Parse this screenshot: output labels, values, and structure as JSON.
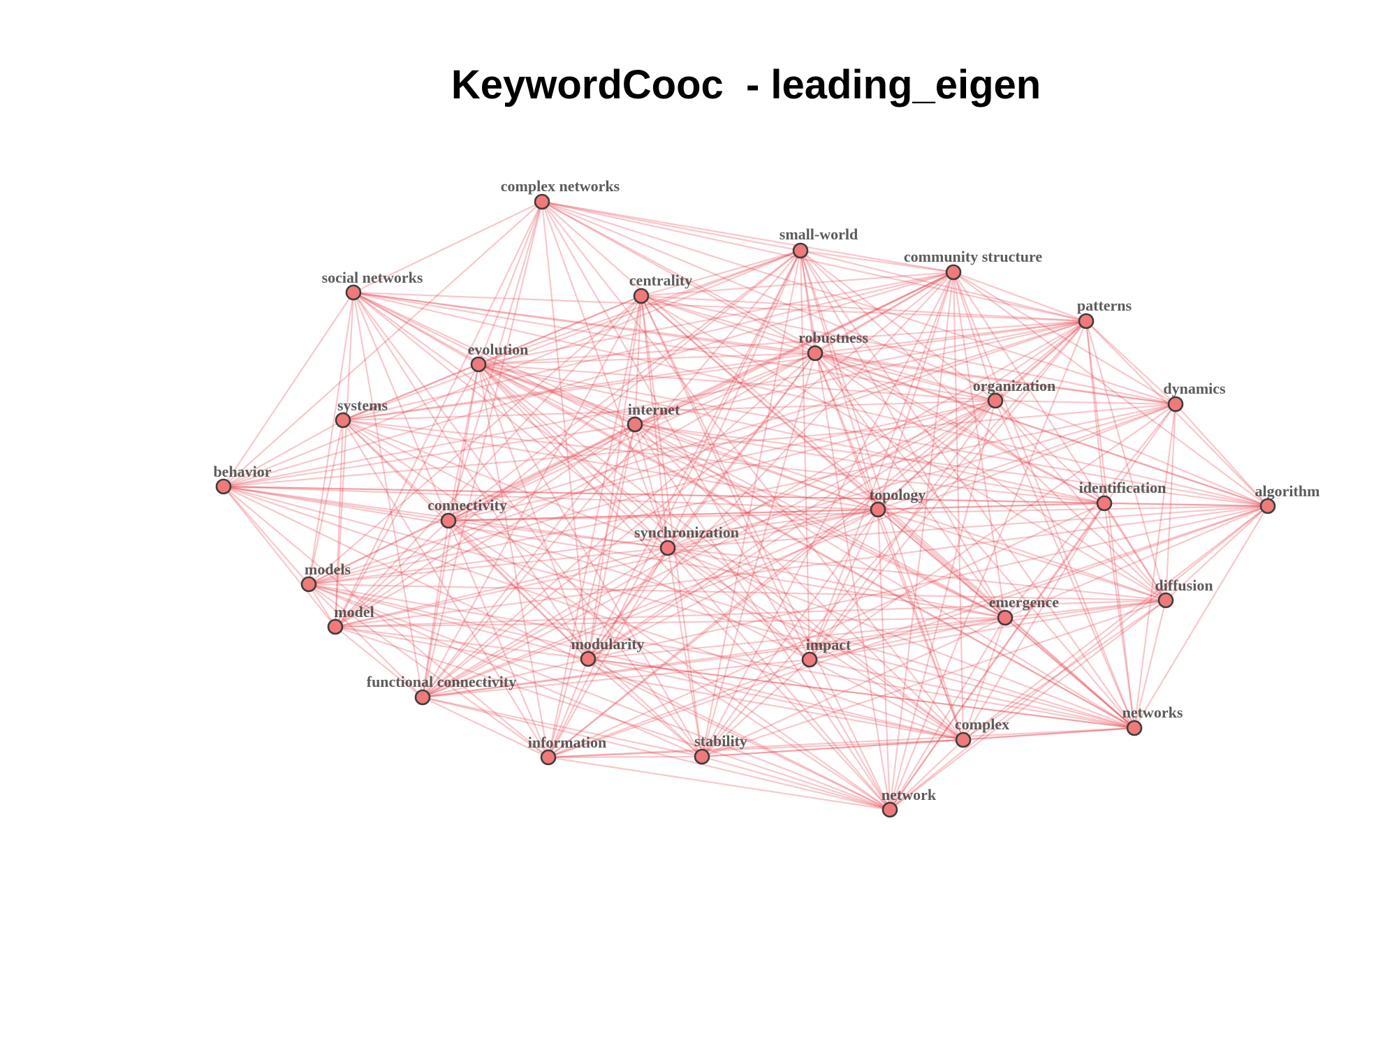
{
  "title": "KeywordCooc  - leading_eigen",
  "colors": {
    "edge": "#e8464e",
    "node_fill": "#f07a7a",
    "node_stroke": "#3d3d3d",
    "label": "#404040",
    "background": "#ffffff"
  },
  "chart_data": {
    "type": "network",
    "title": "KeywordCooc  - leading_eigen",
    "community_detection": "leading_eigen",
    "nodes": [
      "complex networks",
      "small-world",
      "community structure",
      "social networks",
      "centrality",
      "patterns",
      "robustness",
      "evolution",
      "organization",
      "dynamics",
      "systems",
      "internet",
      "behavior",
      "topology",
      "identification",
      "algorithm",
      "connectivity",
      "synchronization",
      "models",
      "diffusion",
      "emergence",
      "model",
      "modularity",
      "impact",
      "functional connectivity",
      "networks",
      "complex",
      "information",
      "stability",
      "network"
    ],
    "edge_density": "dense (near-complete co-occurrence graph)",
    "edge_sample_pairs": [
      [
        "centrality",
        "emergence"
      ],
      [
        "complex networks",
        "social networks"
      ],
      [
        "behavior",
        "models"
      ],
      [
        "models",
        "information"
      ],
      [
        "algorithm",
        "networks"
      ],
      [
        "information",
        "stability"
      ],
      [
        "stability",
        "complex"
      ],
      [
        "complex",
        "networks"
      ],
      [
        "complex",
        "network"
      ],
      [
        "small-world",
        "community structure"
      ],
      [
        "community structure",
        "patterns"
      ],
      [
        "patterns",
        "dynamics"
      ],
      [
        "dynamics",
        "algorithm"
      ],
      [
        "network",
        "stability"
      ]
    ]
  }
}
